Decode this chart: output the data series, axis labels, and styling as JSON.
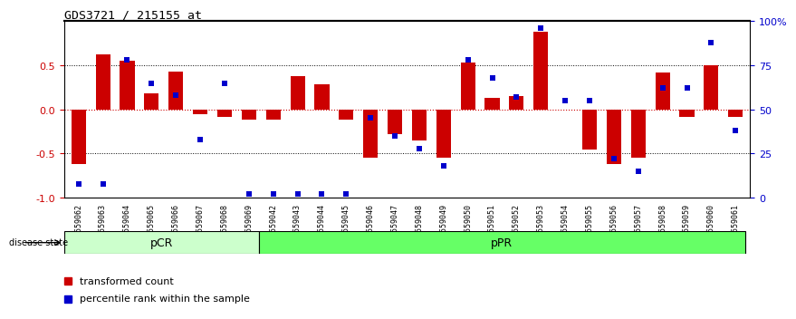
{
  "title": "GDS3721 / 215155_at",
  "samples": [
    "GSM559062",
    "GSM559063",
    "GSM559064",
    "GSM559065",
    "GSM559066",
    "GSM559067",
    "GSM559068",
    "GSM559069",
    "GSM559042",
    "GSM559043",
    "GSM559044",
    "GSM559045",
    "GSM559046",
    "GSM559047",
    "GSM559048",
    "GSM559049",
    "GSM559050",
    "GSM559051",
    "GSM559052",
    "GSM559053",
    "GSM559054",
    "GSM559055",
    "GSM559056",
    "GSM559057",
    "GSM559058",
    "GSM559059",
    "GSM559060",
    "GSM559061"
  ],
  "bar_values": [
    -0.62,
    0.62,
    0.55,
    0.18,
    0.43,
    -0.05,
    -0.08,
    -0.12,
    -0.12,
    0.38,
    0.28,
    -0.12,
    -0.55,
    -0.28,
    -0.35,
    -0.55,
    0.53,
    0.13,
    0.15,
    0.88,
    0.0,
    -0.45,
    -0.62,
    -0.55,
    0.42,
    -0.08,
    0.5,
    -0.08
  ],
  "percentile_values": [
    0.08,
    0.08,
    0.78,
    0.65,
    0.58,
    0.33,
    0.65,
    0.02,
    0.02,
    0.02,
    0.02,
    0.02,
    0.45,
    0.35,
    0.28,
    0.18,
    0.78,
    0.68,
    0.57,
    0.96,
    0.55,
    0.55,
    0.22,
    0.15,
    0.62,
    0.62,
    0.88,
    0.38
  ],
  "pcr_count": 8,
  "ppr_count": 20,
  "bar_color": "#CC0000",
  "percentile_color": "#0000CC",
  "pcr_color": "#ccffcc",
  "ppr_color": "#66ff66",
  "background_color": "#ffffff",
  "ylim": [
    -1.0,
    1.0
  ],
  "yticks_left": [
    -1.0,
    -0.5,
    0.0,
    0.5
  ],
  "yticks_right": [
    0,
    25,
    50,
    75,
    100
  ],
  "dotted_lines": [
    -0.5,
    0.0,
    0.5
  ],
  "legend_items": [
    "transformed count",
    "percentile rank within the sample"
  ]
}
